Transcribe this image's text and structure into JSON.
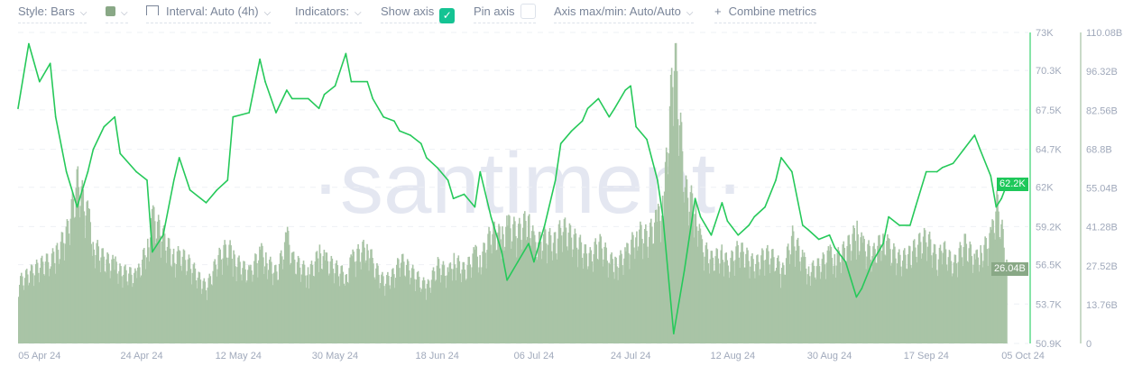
{
  "toolbar": {
    "style_label": "Style: Bars",
    "color_swatch": "#89a886",
    "interval_label": "Interval: Auto (4h)",
    "indicators_label": "Indicators:",
    "show_axis_label": "Show axis",
    "show_axis_checked": true,
    "pin_axis_label": "Pin axis",
    "pin_axis_checked": false,
    "axis_maxmin_label": "Axis max/min: Auto/Auto",
    "combine_label": "Combine metrics",
    "plus_icon": "+",
    "check_icon": "✓",
    "chevron_icon": "⌵"
  },
  "watermark": "·santiment·",
  "chart_data": {
    "type": "line",
    "grid": true,
    "colors": {
      "price": "#26c95a",
      "volume": "#a9c4a6",
      "volume_badge": "#89a886",
      "price_badge": "#1ec85a"
    },
    "x_ticks": [
      {
        "date": "2024-04-05",
        "label": "05 Apr 24"
      },
      {
        "date": "2024-04-24",
        "label": "24 Apr 24"
      },
      {
        "date": "2024-05-12",
        "label": "12 May 24"
      },
      {
        "date": "2024-05-30",
        "label": "30 May 24"
      },
      {
        "date": "2024-06-18",
        "label": "18 Jun 24"
      },
      {
        "date": "2024-07-06",
        "label": "06 Jul 24"
      },
      {
        "date": "2024-07-24",
        "label": "24 Jul 24"
      },
      {
        "date": "2024-08-12",
        "label": "12 Aug 24"
      },
      {
        "date": "2024-08-30",
        "label": "30 Aug 24"
      },
      {
        "date": "2024-09-17",
        "label": "17 Sep 24"
      },
      {
        "date": "2024-10-05",
        "label": "05 Oct 24"
      }
    ],
    "x_range": [
      "2024-04-01",
      "2024-10-06"
    ],
    "y_left": {
      "range": [
        50.9,
        73
      ],
      "ticks": [
        "73K",
        "70.3K",
        "67.5K",
        "64.7K",
        "62K",
        "59.2K",
        "56.5K",
        "53.7K",
        "50.9K"
      ],
      "tick_values": [
        73,
        70.3,
        67.5,
        64.7,
        62,
        59.2,
        56.5,
        53.7,
        50.9
      ],
      "unit": "K",
      "last_value_label": "62.2K",
      "last_value": 62.2
    },
    "y_right": {
      "range": [
        0,
        110.08
      ],
      "ticks": [
        "110.08B",
        "96.32B",
        "82.56B",
        "68.8B",
        "55.04B",
        "41.28B",
        "27.52B",
        "13.76B",
        "0"
      ],
      "tick_values": [
        110.08,
        96.32,
        82.56,
        68.8,
        55.04,
        41.28,
        27.52,
        13.76,
        0
      ],
      "unit": "B",
      "last_value_label": "26.04B",
      "last_value": 26.04
    },
    "dates": [
      "04-01",
      "04-03",
      "04-05",
      "04-07",
      "04-08",
      "04-10",
      "04-12",
      "04-14",
      "04-15",
      "04-17",
      "04-19",
      "04-20",
      "04-23",
      "04-25",
      "04-26",
      "04-28",
      "04-30",
      "05-01",
      "05-03",
      "05-05",
      "05-06",
      "05-08",
      "05-10",
      "05-11",
      "05-14",
      "05-16",
      "05-17",
      "05-19",
      "05-21",
      "05-22",
      "05-25",
      "05-27",
      "05-28",
      "05-30",
      "06-01",
      "06-02",
      "06-05",
      "06-06",
      "06-08",
      "06-10",
      "06-11",
      "06-13",
      "06-15",
      "06-16",
      "06-18",
      "06-20",
      "06-21",
      "06-23",
      "06-25",
      "06-26",
      "06-28",
      "06-30",
      "07-01",
      "07-03",
      "07-05",
      "07-06",
      "07-08",
      "07-10",
      "07-11",
      "07-13",
      "07-15",
      "07-16",
      "07-18",
      "07-20",
      "07-21",
      "07-23",
      "07-24",
      "07-25",
      "07-27",
      "07-29",
      "07-30",
      "08-01",
      "08-03",
      "08-05",
      "08-06",
      "08-08",
      "08-10",
      "08-11",
      "08-13",
      "08-15",
      "08-16",
      "08-18",
      "08-20",
      "08-21",
      "08-23",
      "08-25",
      "08-26",
      "08-28",
      "08-30",
      "08-31",
      "09-02",
      "09-04",
      "09-05",
      "09-07",
      "09-09",
      "09-10",
      "09-12",
      "09-14",
      "09-15",
      "09-17",
      "09-19",
      "09-20",
      "09-22",
      "09-24",
      "09-26",
      "09-27",
      "09-29",
      "09-30",
      "10-01",
      "10-02"
    ],
    "series": [
      {
        "key": "price",
        "values": [
          67.6,
          72.2,
          69.5,
          70.8,
          67.0,
          63.1,
          60.6,
          63.1,
          64.7,
          66.3,
          67.0,
          64.4,
          63.1,
          62.5,
          57.4,
          58.6,
          62.5,
          64.1,
          61.8,
          61.2,
          60.9,
          61.8,
          62.5,
          67.0,
          67.3,
          71.1,
          69.5,
          67.3,
          68.9,
          68.3,
          68.3,
          67.6,
          68.6,
          69.2,
          71.5,
          69.5,
          69.5,
          68.3,
          67.0,
          66.7,
          66.0,
          65.7,
          65.1,
          64.1,
          63.4,
          62.5,
          61.2,
          61.5,
          60.6,
          63.1,
          59.9,
          57.4,
          55.4,
          56.7,
          58.0,
          56.7,
          59.3,
          62.5,
          65.1,
          66.0,
          66.7,
          67.6,
          68.3,
          67.0,
          67.6,
          68.9,
          69.2,
          66.3,
          65.4,
          62.5,
          59.9,
          51.6,
          56.1,
          61.2,
          59.9,
          58.6,
          60.9,
          59.6,
          58.6,
          59.3,
          59.9,
          60.6,
          62.5,
          64.1,
          63.1,
          59.3,
          59.0,
          58.3,
          58.6,
          57.7,
          56.7,
          54.2,
          54.8,
          56.7,
          58.0,
          59.9,
          59.3,
          59.3,
          60.6,
          63.1,
          63.1,
          63.4,
          63.7,
          64.7,
          65.7,
          64.7,
          62.8,
          60.6,
          61.2,
          62.2
        ]
      },
      {
        "key": "volume",
        "values": [
          22,
          25,
          28,
          30,
          32,
          40,
          58,
          45,
          35,
          30,
          28,
          26,
          24,
          35,
          45,
          38,
          30,
          32,
          28,
          22,
          20,
          30,
          35,
          30,
          25,
          33,
          30,
          25,
          38,
          30,
          25,
          32,
          30,
          27,
          24,
          30,
          35,
          28,
          22,
          25,
          30,
          26,
          22,
          20,
          28,
          25,
          30,
          26,
          32,
          30,
          40,
          38,
          42,
          40,
          45,
          35,
          38,
          36,
          42,
          38,
          34,
          30,
          36,
          30,
          28,
          32,
          35,
          40,
          38,
          45,
          50,
          105,
          55,
          48,
          35,
          30,
          32,
          28,
          34,
          30,
          28,
          32,
          30,
          25,
          38,
          30,
          26,
          28,
          32,
          30,
          34,
          40,
          35,
          32,
          38,
          34,
          30,
          32,
          35,
          38,
          30,
          34,
          28,
          36,
          30,
          32,
          38,
          50,
          40,
          26.04
        ]
      }
    ]
  }
}
